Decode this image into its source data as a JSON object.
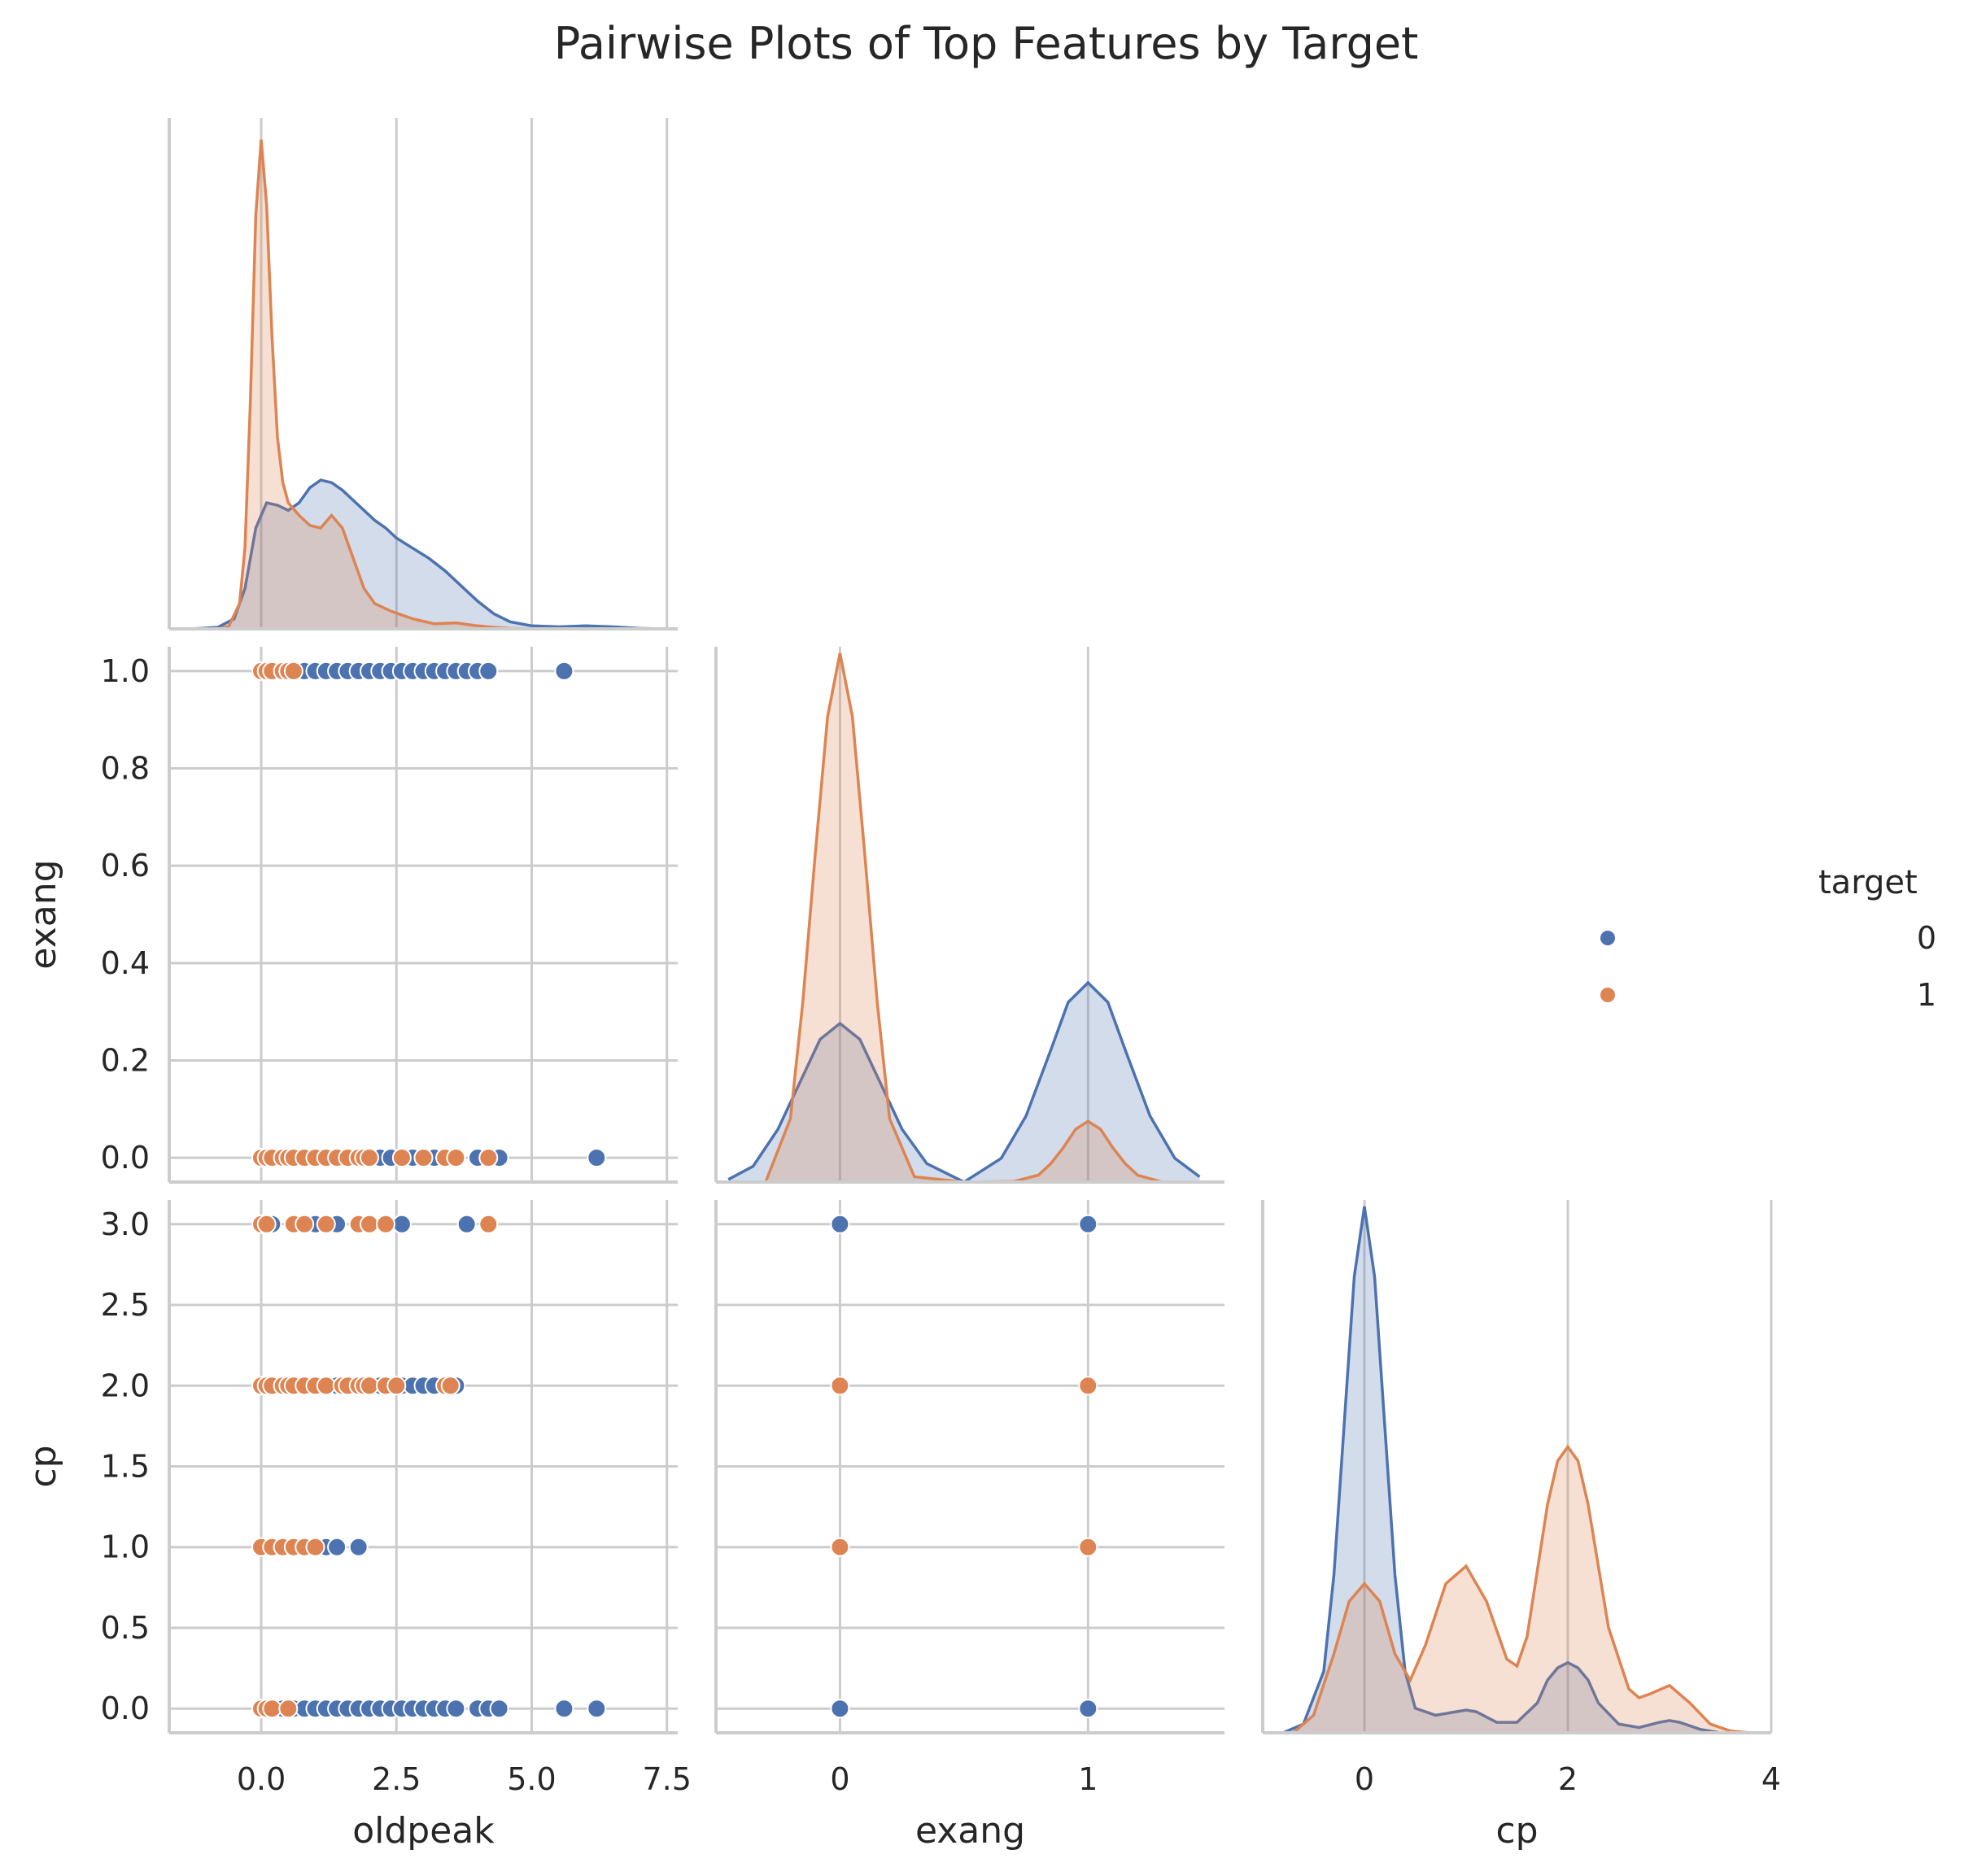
{
  "chart_data": {
    "type": "scatter",
    "subtype": "pairplot-corner",
    "title": "Pairwise Plots of Top Features by Target",
    "features": [
      "oldpeak",
      "exang",
      "cp"
    ],
    "colors": {
      "0": "#4c72b0",
      "1": "#dd8452"
    },
    "legend": {
      "title": "target",
      "entries": [
        "0",
        "1"
      ],
      "placement": "right"
    },
    "grid": true,
    "axes": {
      "oldpeak": {
        "label": "oldpeak",
        "range": [
          -1.7,
          7.7
        ],
        "ticks": [
          0.0,
          2.5,
          5.0,
          7.5
        ],
        "tick_labels": [
          "0.0",
          "2.5",
          "5.0",
          "7.5"
        ]
      },
      "exang": {
        "label": "exang",
        "range": [
          -0.5,
          1.55
        ],
        "ticks": [
          0,
          1
        ],
        "tick_labels": [
          "0",
          "1"
        ],
        "y_range": [
          -0.05,
          1.05
        ],
        "y_ticks": [
          0.0,
          0.2,
          0.4,
          0.6,
          0.8,
          1.0
        ],
        "y_tick_labels": [
          "0.0",
          "0.2",
          "0.4",
          "0.6",
          "0.8",
          "1.0"
        ]
      },
      "cp": {
        "label": "cp",
        "range": [
          -1.0,
          4.0
        ],
        "ticks": [
          0,
          2,
          4
        ],
        "tick_labels": [
          "0",
          "2",
          "4"
        ],
        "y_range": [
          -0.15,
          3.15
        ],
        "y_ticks": [
          0.0,
          0.5,
          1.0,
          1.5,
          2.0,
          2.5,
          3.0
        ],
        "y_tick_labels": [
          "0.0",
          "0.5",
          "1.0",
          "1.5",
          "2.0",
          "2.5",
          "3.0"
        ]
      }
    },
    "kde_diagonal": {
      "oldpeak": {
        "0": {
          "x": [
            -1.3,
            -0.8,
            -0.5,
            -0.3,
            -0.1,
            0.1,
            0.3,
            0.5,
            0.7,
            0.9,
            1.1,
            1.3,
            1.5,
            1.7,
            1.9,
            2.1,
            2.3,
            2.5,
            2.8,
            3.1,
            3.4,
            3.7,
            4.0,
            4.3,
            4.6,
            5.0,
            5.5,
            6.0,
            6.5,
            7.0,
            7.4
          ],
          "y": [
            0.0,
            0.003,
            0.02,
            0.08,
            0.2,
            0.25,
            0.245,
            0.235,
            0.25,
            0.28,
            0.295,
            0.29,
            0.275,
            0.255,
            0.235,
            0.215,
            0.2,
            0.18,
            0.16,
            0.14,
            0.115,
            0.085,
            0.055,
            0.03,
            0.014,
            0.006,
            0.004,
            0.006,
            0.004,
            0.001,
            0.0
          ]
        },
        "1": {
          "x": [
            -0.8,
            -0.6,
            -0.4,
            -0.3,
            -0.2,
            -0.1,
            0.0,
            0.1,
            0.2,
            0.3,
            0.4,
            0.5,
            0.7,
            0.9,
            1.1,
            1.3,
            1.5,
            1.7,
            1.9,
            2.1,
            2.4,
            2.8,
            3.2,
            3.6,
            4.0,
            4.3,
            4.6,
            5.0
          ],
          "y": [
            0.0,
            0.005,
            0.05,
            0.16,
            0.45,
            0.82,
            0.97,
            0.84,
            0.58,
            0.38,
            0.29,
            0.25,
            0.225,
            0.205,
            0.2,
            0.225,
            0.2,
            0.14,
            0.08,
            0.05,
            0.035,
            0.02,
            0.01,
            0.012,
            0.006,
            0.003,
            0.001,
            0.0
          ]
        }
      },
      "exang": {
        "0": {
          "x": [
            -0.45,
            -0.35,
            -0.25,
            -0.15,
            -0.08,
            0.0,
            0.08,
            0.15,
            0.25,
            0.35,
            0.5,
            0.65,
            0.75,
            0.85,
            0.92,
            1.0,
            1.08,
            1.15,
            1.25,
            1.35,
            1.45
          ],
          "y": [
            0.005,
            0.03,
            0.1,
            0.2,
            0.27,
            0.3,
            0.27,
            0.2,
            0.1,
            0.035,
            0.0,
            0.045,
            0.125,
            0.25,
            0.34,
            0.377,
            0.34,
            0.25,
            0.125,
            0.045,
            0.01
          ]
        },
        "1": {
          "x": [
            -0.3,
            -0.2,
            -0.15,
            -0.1,
            -0.05,
            0.0,
            0.05,
            0.1,
            0.15,
            0.2,
            0.3,
            0.5,
            0.7,
            0.8,
            0.85,
            0.9,
            0.95,
            1.0,
            1.05,
            1.1,
            1.15,
            1.2,
            1.3
          ],
          "y": [
            0.0,
            0.12,
            0.34,
            0.62,
            0.88,
            1.0,
            0.88,
            0.62,
            0.34,
            0.12,
            0.01,
            0.0,
            0.001,
            0.013,
            0.035,
            0.065,
            0.1,
            0.115,
            0.1,
            0.065,
            0.035,
            0.013,
            0.0
          ]
        }
      },
      "cp": {
        "0": {
          "x": [
            -0.8,
            -0.6,
            -0.4,
            -0.3,
            -0.2,
            -0.1,
            0.0,
            0.1,
            0.2,
            0.3,
            0.4,
            0.5,
            0.7,
            0.9,
            1.0,
            1.1,
            1.3,
            1.5,
            1.7,
            1.8,
            1.9,
            2.0,
            2.1,
            2.2,
            2.3,
            2.5,
            2.7,
            2.9,
            3.0,
            3.1,
            3.3,
            3.5
          ],
          "y": [
            0.0,
            0.05,
            0.35,
            0.9,
            1.75,
            2.6,
            3.0,
            2.6,
            1.75,
            0.9,
            0.35,
            0.14,
            0.1,
            0.12,
            0.13,
            0.12,
            0.06,
            0.06,
            0.17,
            0.3,
            0.37,
            0.4,
            0.37,
            0.3,
            0.17,
            0.05,
            0.03,
            0.06,
            0.07,
            0.06,
            0.02,
            0.0
          ]
        },
        "1": {
          "x": [
            -0.7,
            -0.5,
            -0.3,
            -0.15,
            0.0,
            0.15,
            0.3,
            0.45,
            0.6,
            0.8,
            1.0,
            1.2,
            1.4,
            1.5,
            1.6,
            1.8,
            1.9,
            2.0,
            2.1,
            2.2,
            2.4,
            2.6,
            2.7,
            2.8,
            3.0,
            3.2,
            3.4,
            3.6,
            3.8
          ],
          "y": [
            0.0,
            0.1,
            0.45,
            0.75,
            0.85,
            0.75,
            0.45,
            0.3,
            0.5,
            0.85,
            0.95,
            0.75,
            0.42,
            0.38,
            0.55,
            1.3,
            1.55,
            1.63,
            1.55,
            1.3,
            0.6,
            0.25,
            0.2,
            0.22,
            0.27,
            0.17,
            0.05,
            0.01,
            0.0
          ]
        }
      }
    },
    "scatter": {
      "oldpeak_vs_exang": {
        "0": [
          [
            0.0,
            0
          ],
          [
            0.2,
            0
          ],
          [
            0.4,
            0
          ],
          [
            0.6,
            0
          ],
          [
            0.8,
            0
          ],
          [
            1.0,
            0
          ],
          [
            1.2,
            0
          ],
          [
            1.4,
            0
          ],
          [
            1.6,
            0
          ],
          [
            1.8,
            0
          ],
          [
            2.0,
            0
          ],
          [
            2.2,
            0
          ],
          [
            2.4,
            0
          ],
          [
            2.6,
            0
          ],
          [
            2.8,
            0
          ],
          [
            3.0,
            0
          ],
          [
            3.2,
            0
          ],
          [
            3.4,
            0
          ],
          [
            3.6,
            0
          ],
          [
            4.0,
            0
          ],
          [
            4.2,
            0
          ],
          [
            4.4,
            0
          ],
          [
            6.2,
            0
          ],
          [
            0.0,
            1
          ],
          [
            0.2,
            1
          ],
          [
            0.6,
            1
          ],
          [
            0.8,
            1
          ],
          [
            1.0,
            1
          ],
          [
            1.2,
            1
          ],
          [
            1.4,
            1
          ],
          [
            1.6,
            1
          ],
          [
            1.8,
            1
          ],
          [
            2.0,
            1
          ],
          [
            2.2,
            1
          ],
          [
            2.4,
            1
          ],
          [
            2.6,
            1
          ],
          [
            2.8,
            1
          ],
          [
            3.0,
            1
          ],
          [
            3.2,
            1
          ],
          [
            3.4,
            1
          ],
          [
            3.6,
            1
          ],
          [
            3.8,
            1
          ],
          [
            4.0,
            1
          ],
          [
            4.2,
            1
          ],
          [
            5.6,
            1
          ]
        ],
        "1": [
          [
            0.0,
            0
          ],
          [
            0.1,
            0
          ],
          [
            0.2,
            0
          ],
          [
            0.4,
            0
          ],
          [
            0.5,
            0
          ],
          [
            0.6,
            0
          ],
          [
            0.8,
            0
          ],
          [
            1.0,
            0
          ],
          [
            1.2,
            0
          ],
          [
            1.4,
            0
          ],
          [
            1.6,
            0
          ],
          [
            1.8,
            0
          ],
          [
            1.9,
            0
          ],
          [
            2.0,
            0
          ],
          [
            2.6,
            0
          ],
          [
            3.0,
            0
          ],
          [
            3.4,
            0
          ],
          [
            3.6,
            0
          ],
          [
            4.2,
            0
          ],
          [
            0.0,
            1
          ],
          [
            0.1,
            1
          ],
          [
            0.2,
            1
          ],
          [
            0.4,
            1
          ],
          [
            0.5,
            1
          ],
          [
            0.6,
            1
          ]
        ]
      },
      "oldpeak_vs_cp": {
        "0": [
          [
            0.0,
            0
          ],
          [
            0.2,
            0
          ],
          [
            0.4,
            0
          ],
          [
            0.6,
            0
          ],
          [
            0.8,
            0
          ],
          [
            1.0,
            0
          ],
          [
            1.2,
            0
          ],
          [
            1.4,
            0
          ],
          [
            1.6,
            0
          ],
          [
            1.8,
            0
          ],
          [
            2.0,
            0
          ],
          [
            2.2,
            0
          ],
          [
            2.4,
            0
          ],
          [
            2.6,
            0
          ],
          [
            2.8,
            0
          ],
          [
            3.0,
            0
          ],
          [
            3.2,
            0
          ],
          [
            3.4,
            0
          ],
          [
            3.6,
            0
          ],
          [
            4.0,
            0
          ],
          [
            4.2,
            0
          ],
          [
            4.4,
            0
          ],
          [
            5.6,
            0
          ],
          [
            6.2,
            0
          ],
          [
            0.0,
            1
          ],
          [
            0.6,
            1
          ],
          [
            1.0,
            1
          ],
          [
            1.2,
            1
          ],
          [
            1.4,
            1
          ],
          [
            1.8,
            1
          ],
          [
            0.0,
            2
          ],
          [
            0.2,
            2
          ],
          [
            0.6,
            2
          ],
          [
            1.0,
            2
          ],
          [
            1.4,
            2
          ],
          [
            1.8,
            2
          ],
          [
            2.0,
            2
          ],
          [
            2.2,
            2
          ],
          [
            2.4,
            2
          ],
          [
            2.6,
            2
          ],
          [
            2.8,
            2
          ],
          [
            3.0,
            2
          ],
          [
            3.2,
            2
          ],
          [
            3.6,
            2
          ],
          [
            0.0,
            3
          ],
          [
            0.2,
            3
          ],
          [
            0.8,
            3
          ],
          [
            1.0,
            3
          ],
          [
            1.4,
            3
          ],
          [
            2.6,
            3
          ],
          [
            3.8,
            3
          ]
        ],
        "1": [
          [
            0.0,
            0
          ],
          [
            0.1,
            0
          ],
          [
            0.2,
            0
          ],
          [
            0.5,
            0
          ],
          [
            0.0,
            1
          ],
          [
            0.2,
            1
          ],
          [
            0.4,
            1
          ],
          [
            0.6,
            1
          ],
          [
            0.8,
            1
          ],
          [
            1.0,
            1
          ],
          [
            0.0,
            2
          ],
          [
            0.1,
            2
          ],
          [
            0.2,
            2
          ],
          [
            0.4,
            2
          ],
          [
            0.5,
            2
          ],
          [
            0.6,
            2
          ],
          [
            0.8,
            2
          ],
          [
            1.0,
            2
          ],
          [
            1.2,
            2
          ],
          [
            1.5,
            2
          ],
          [
            1.6,
            2
          ],
          [
            1.8,
            2
          ],
          [
            1.9,
            2
          ],
          [
            2.0,
            2
          ],
          [
            2.3,
            2
          ],
          [
            2.5,
            2
          ],
          [
            3.4,
            2
          ],
          [
            3.5,
            2
          ],
          [
            0.0,
            3
          ],
          [
            0.1,
            3
          ],
          [
            0.6,
            3
          ],
          [
            0.8,
            3
          ],
          [
            1.2,
            3
          ],
          [
            1.8,
            3
          ],
          [
            2.0,
            3
          ],
          [
            2.3,
            3
          ],
          [
            4.2,
            3
          ]
        ]
      },
      "exang_vs_cp": {
        "0": [
          [
            0,
            0
          ],
          [
            1,
            0
          ],
          [
            0,
            1
          ],
          [
            0,
            3
          ],
          [
            1,
            3
          ]
        ],
        "1": [
          [
            0,
            1
          ],
          [
            1,
            1
          ],
          [
            0,
            2
          ],
          [
            1,
            2
          ]
        ]
      }
    }
  }
}
